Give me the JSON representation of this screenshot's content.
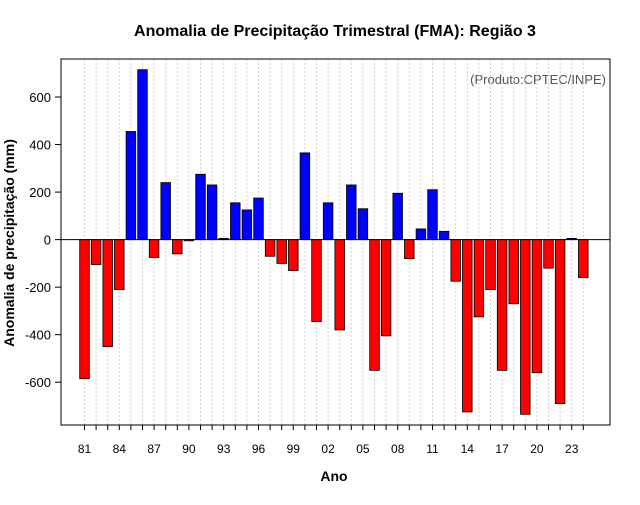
{
  "chart_data": {
    "type": "bar",
    "title": "Anomalia de Precipitação Trimestral (FMA): Região 3",
    "source_note": "(Produto:CPTEC/INPE)",
    "xlabel": "Ano",
    "ylabel": "Anomalia de precipitação (mm)",
    "ylim": [
      -780,
      760
    ],
    "yticks": [
      -600,
      -400,
      -200,
      0,
      200,
      400,
      600
    ],
    "grid": "vertical dotted",
    "colors": {
      "positive": "#0000ff",
      "negative": "#ff0000",
      "border": "#000000",
      "zero_line": "#000000",
      "grid": "#d3d3d3"
    },
    "categories": [
      "81",
      "82",
      "83",
      "84",
      "85",
      "86",
      "87",
      "88",
      "89",
      "90",
      "91",
      "92",
      "93",
      "94",
      "95",
      "96",
      "97",
      "98",
      "99",
      "00",
      "01",
      "02",
      "03",
      "04",
      "05",
      "06",
      "07",
      "08",
      "09",
      "10",
      "11",
      "12",
      "13",
      "14",
      "15",
      "16",
      "17",
      "18",
      "19",
      "20",
      "21",
      "22",
      "23",
      "24"
    ],
    "tick_labels": [
      "81",
      "84",
      "87",
      "90",
      "93",
      "96",
      "99",
      "02",
      "05",
      "08",
      "11",
      "14",
      "17",
      "20",
      "23"
    ],
    "values": [
      -585,
      -105,
      -450,
      -210,
      455,
      715,
      -75,
      240,
      -60,
      -5,
      275,
      230,
      5,
      155,
      125,
      175,
      -70,
      -100,
      -130,
      365,
      -345,
      155,
      -380,
      230,
      130,
      -550,
      -405,
      195,
      -80,
      45,
      210,
      35,
      -175,
      -725,
      -325,
      -210,
      -550,
      -270,
      -735,
      -560,
      -120,
      -690,
      5,
      -160
    ]
  }
}
